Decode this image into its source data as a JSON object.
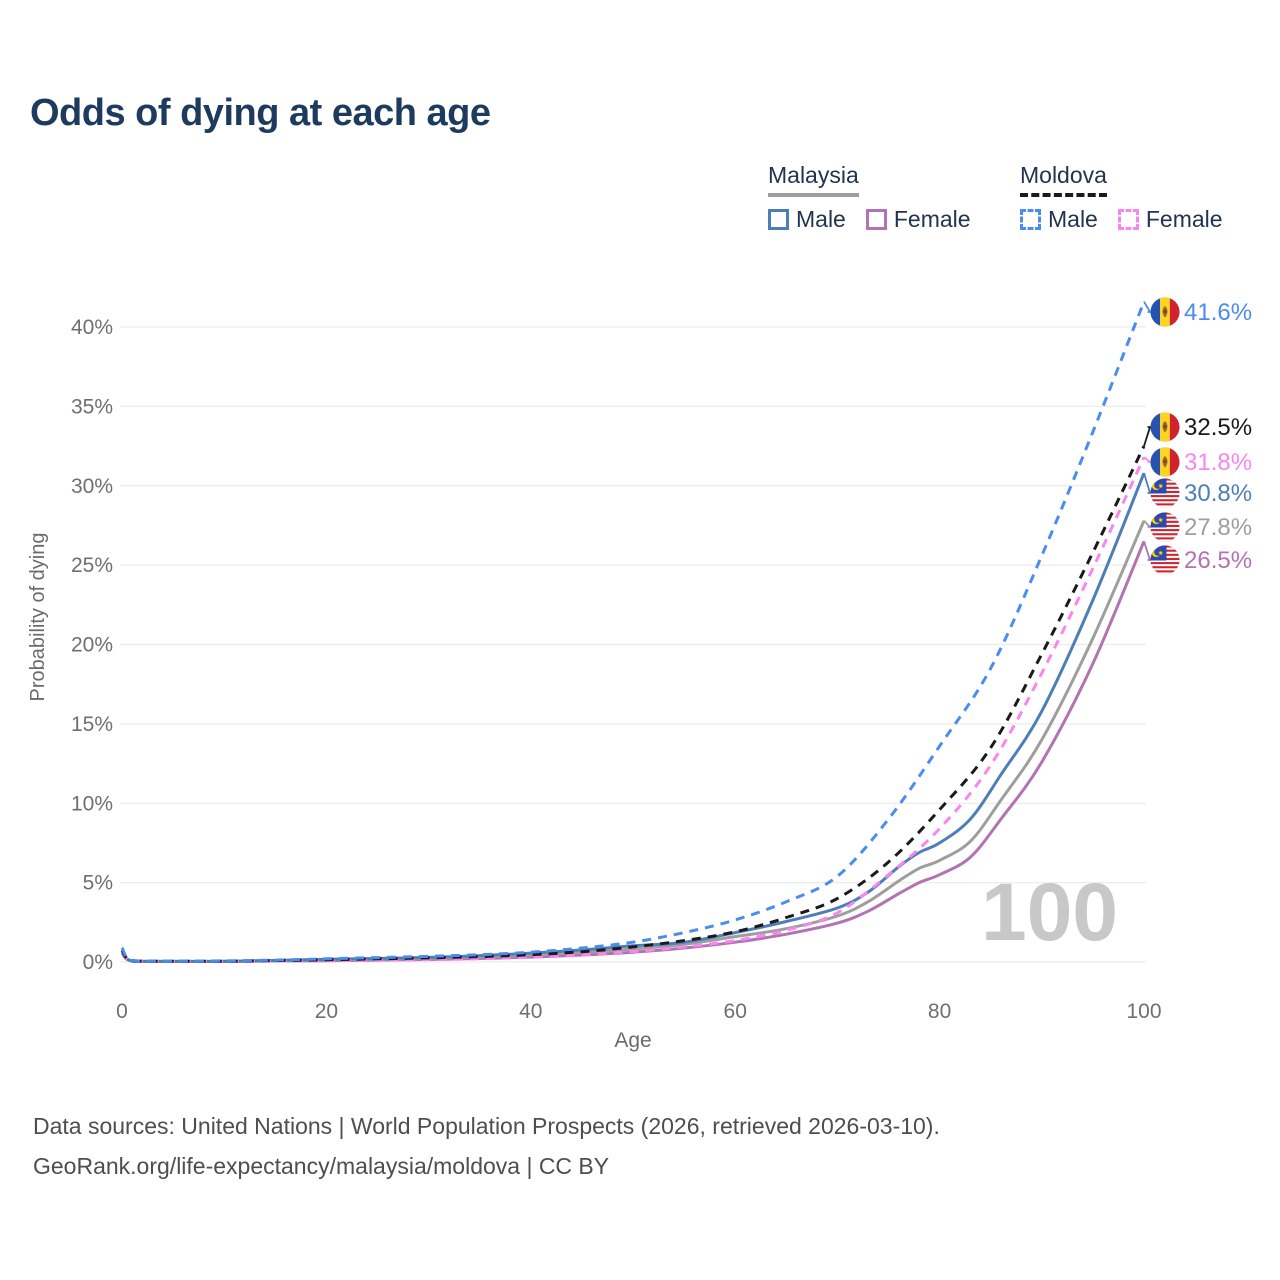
{
  "title": "Odds of dying at each age",
  "legend": {
    "groups": [
      {
        "country": "Malaysia",
        "line_style": "solid",
        "underline_color": "#9e9e9e",
        "items": [
          {
            "label": "Male",
            "color": "#4d7eb8",
            "dashed": false
          },
          {
            "label": "Female",
            "color": "#b173b3",
            "dashed": false
          }
        ]
      },
      {
        "country": "Moldova",
        "line_style": "dashed",
        "underline_color": "#1a1a1a",
        "items": [
          {
            "label": "Male",
            "color": "#4a8cf0",
            "dashed": true
          },
          {
            "label": "Female",
            "color": "#f985ee",
            "dashed": true
          }
        ]
      }
    ]
  },
  "chart_data": {
    "type": "line",
    "title": "Odds of dying at each age",
    "xlabel": "Age",
    "ylabel": "Probability of dying",
    "xlim": [
      0,
      100
    ],
    "ylim_percent": [
      0,
      42
    ],
    "x_ticks": [
      0,
      20,
      40,
      60,
      80,
      100
    ],
    "x_tick_labels": [
      "0",
      "20",
      "40",
      "60",
      "80",
      "100"
    ],
    "y_ticks_percent": [
      0,
      5,
      10,
      15,
      20,
      25,
      30,
      35,
      40
    ],
    "y_tick_labels": [
      "0%",
      "5%",
      "10%",
      "15%",
      "20%",
      "25%",
      "30%",
      "35%",
      "40%"
    ],
    "grid": "horizontal-only",
    "legend_position": "top-right",
    "watermark": "100",
    "series": [
      {
        "id": "malaysia_female",
        "name": "Malaysia Female",
        "country": "Malaysia",
        "sex": "Female",
        "color": "#b173b3",
        "dashed": false,
        "end_label": "26.5%",
        "flag": "malaysia-flag-icon",
        "points": [
          [
            0,
            0.55
          ],
          [
            1,
            0.05
          ],
          [
            5,
            0.03
          ],
          [
            10,
            0.03
          ],
          [
            15,
            0.06
          ],
          [
            20,
            0.08
          ],
          [
            25,
            0.12
          ],
          [
            30,
            0.16
          ],
          [
            35,
            0.22
          ],
          [
            40,
            0.31
          ],
          [
            45,
            0.44
          ],
          [
            50,
            0.62
          ],
          [
            55,
            0.88
          ],
          [
            60,
            1.25
          ],
          [
            65,
            1.75
          ],
          [
            70,
            2.45
          ],
          [
            73,
            3.2
          ],
          [
            76,
            4.3
          ],
          [
            78,
            5.0
          ],
          [
            80,
            5.5
          ],
          [
            83,
            6.6
          ],
          [
            86,
            9.0
          ],
          [
            90,
            12.6
          ],
          [
            95,
            18.8
          ],
          [
            100,
            26.5
          ]
        ]
      },
      {
        "id": "malaysia_avg",
        "name": "Malaysia",
        "country": "Malaysia",
        "sex": "Both",
        "color": "#9e9e9e",
        "dashed": false,
        "end_label": "27.8%",
        "flag": "malaysia-flag-icon",
        "points": [
          [
            0,
            0.6
          ],
          [
            1,
            0.05
          ],
          [
            5,
            0.04
          ],
          [
            10,
            0.04
          ],
          [
            15,
            0.08
          ],
          [
            20,
            0.13
          ],
          [
            25,
            0.17
          ],
          [
            30,
            0.23
          ],
          [
            35,
            0.32
          ],
          [
            40,
            0.44
          ],
          [
            45,
            0.6
          ],
          [
            50,
            0.82
          ],
          [
            55,
            1.12
          ],
          [
            60,
            1.6
          ],
          [
            65,
            2.1
          ],
          [
            70,
            2.9
          ],
          [
            73,
            3.8
          ],
          [
            76,
            5.1
          ],
          [
            78,
            5.9
          ],
          [
            80,
            6.4
          ],
          [
            83,
            7.6
          ],
          [
            86,
            10.2
          ],
          [
            90,
            14.0
          ],
          [
            95,
            20.4
          ],
          [
            100,
            27.8
          ]
        ]
      },
      {
        "id": "malaysia_male",
        "name": "Malaysia Male",
        "country": "Malaysia",
        "sex": "Male",
        "color": "#4d7eb8",
        "dashed": false,
        "end_label": "30.8%",
        "flag": "malaysia-flag-icon",
        "points": [
          [
            0,
            0.7
          ],
          [
            1,
            0.06
          ],
          [
            5,
            0.04
          ],
          [
            10,
            0.05
          ],
          [
            15,
            0.1
          ],
          [
            20,
            0.17
          ],
          [
            25,
            0.22
          ],
          [
            30,
            0.29
          ],
          [
            35,
            0.4
          ],
          [
            40,
            0.56
          ],
          [
            45,
            0.76
          ],
          [
            50,
            1.02
          ],
          [
            55,
            1.25
          ],
          [
            60,
            1.85
          ],
          [
            65,
            2.55
          ],
          [
            70,
            3.4
          ],
          [
            73,
            4.4
          ],
          [
            76,
            6.0
          ],
          [
            78,
            6.9
          ],
          [
            80,
            7.5
          ],
          [
            83,
            9.0
          ],
          [
            86,
            11.8
          ],
          [
            90,
            15.8
          ],
          [
            95,
            22.8
          ],
          [
            100,
            30.8
          ]
        ]
      },
      {
        "id": "moldova_female",
        "name": "Moldova Female",
        "country": "Moldova",
        "sex": "Female",
        "color": "#f985ee",
        "dashed": true,
        "end_label": "31.8%",
        "flag": "moldova-flag-icon",
        "points": [
          [
            0,
            0.65
          ],
          [
            1,
            0.07
          ],
          [
            5,
            0.04
          ],
          [
            10,
            0.04
          ],
          [
            15,
            0.06
          ],
          [
            20,
            0.08
          ],
          [
            25,
            0.11
          ],
          [
            30,
            0.15
          ],
          [
            35,
            0.21
          ],
          [
            40,
            0.3
          ],
          [
            45,
            0.45
          ],
          [
            50,
            0.66
          ],
          [
            55,
            0.95
          ],
          [
            60,
            1.35
          ],
          [
            65,
            2.0
          ],
          [
            70,
            3.1
          ],
          [
            75,
            5.5
          ],
          [
            80,
            8.4
          ],
          [
            85,
            12.4
          ],
          [
            90,
            18.2
          ],
          [
            95,
            24.8
          ],
          [
            100,
            31.8
          ]
        ]
      },
      {
        "id": "moldova_avg",
        "name": "Moldova",
        "country": "Moldova",
        "sex": "Both",
        "color": "#1a1a1a",
        "dashed": true,
        "end_label": "32.5%",
        "flag": "moldova-flag-icon",
        "points": [
          [
            0,
            0.75
          ],
          [
            1,
            0.08
          ],
          [
            5,
            0.05
          ],
          [
            10,
            0.05
          ],
          [
            15,
            0.09
          ],
          [
            20,
            0.14
          ],
          [
            25,
            0.2
          ],
          [
            30,
            0.26
          ],
          [
            35,
            0.34
          ],
          [
            40,
            0.46
          ],
          [
            45,
            0.65
          ],
          [
            50,
            0.95
          ],
          [
            55,
            1.35
          ],
          [
            60,
            1.9
          ],
          [
            65,
            2.8
          ],
          [
            70,
            4.0
          ],
          [
            75,
            6.3
          ],
          [
            80,
            9.6
          ],
          [
            85,
            13.5
          ],
          [
            90,
            19.4
          ],
          [
            95,
            25.8
          ],
          [
            100,
            32.5
          ]
        ]
      },
      {
        "id": "moldova_male",
        "name": "Moldova Male",
        "country": "Moldova",
        "sex": "Male",
        "color": "#4a8cf0",
        "dashed": true,
        "end_label": "41.6%",
        "flag": "moldova-flag-icon",
        "points": [
          [
            0,
            0.9
          ],
          [
            1,
            0.1
          ],
          [
            5,
            0.06
          ],
          [
            10,
            0.07
          ],
          [
            15,
            0.12
          ],
          [
            20,
            0.2
          ],
          [
            25,
            0.28
          ],
          [
            30,
            0.36
          ],
          [
            35,
            0.46
          ],
          [
            40,
            0.62
          ],
          [
            45,
            0.88
          ],
          [
            50,
            1.25
          ],
          [
            55,
            1.85
          ],
          [
            60,
            2.65
          ],
          [
            65,
            3.8
          ],
          [
            70,
            5.4
          ],
          [
            75,
            9.0
          ],
          [
            80,
            13.6
          ],
          [
            85,
            18.5
          ],
          [
            90,
            25.6
          ],
          [
            95,
            33.4
          ],
          [
            100,
            41.6
          ]
        ]
      }
    ]
  },
  "footer": {
    "line1": "Data sources: United Nations | World Population Prospects (2026, retrieved 2026-03-10).",
    "line2": "GeoRank.org/life-expectancy/malaysia/moldova | CC BY"
  }
}
